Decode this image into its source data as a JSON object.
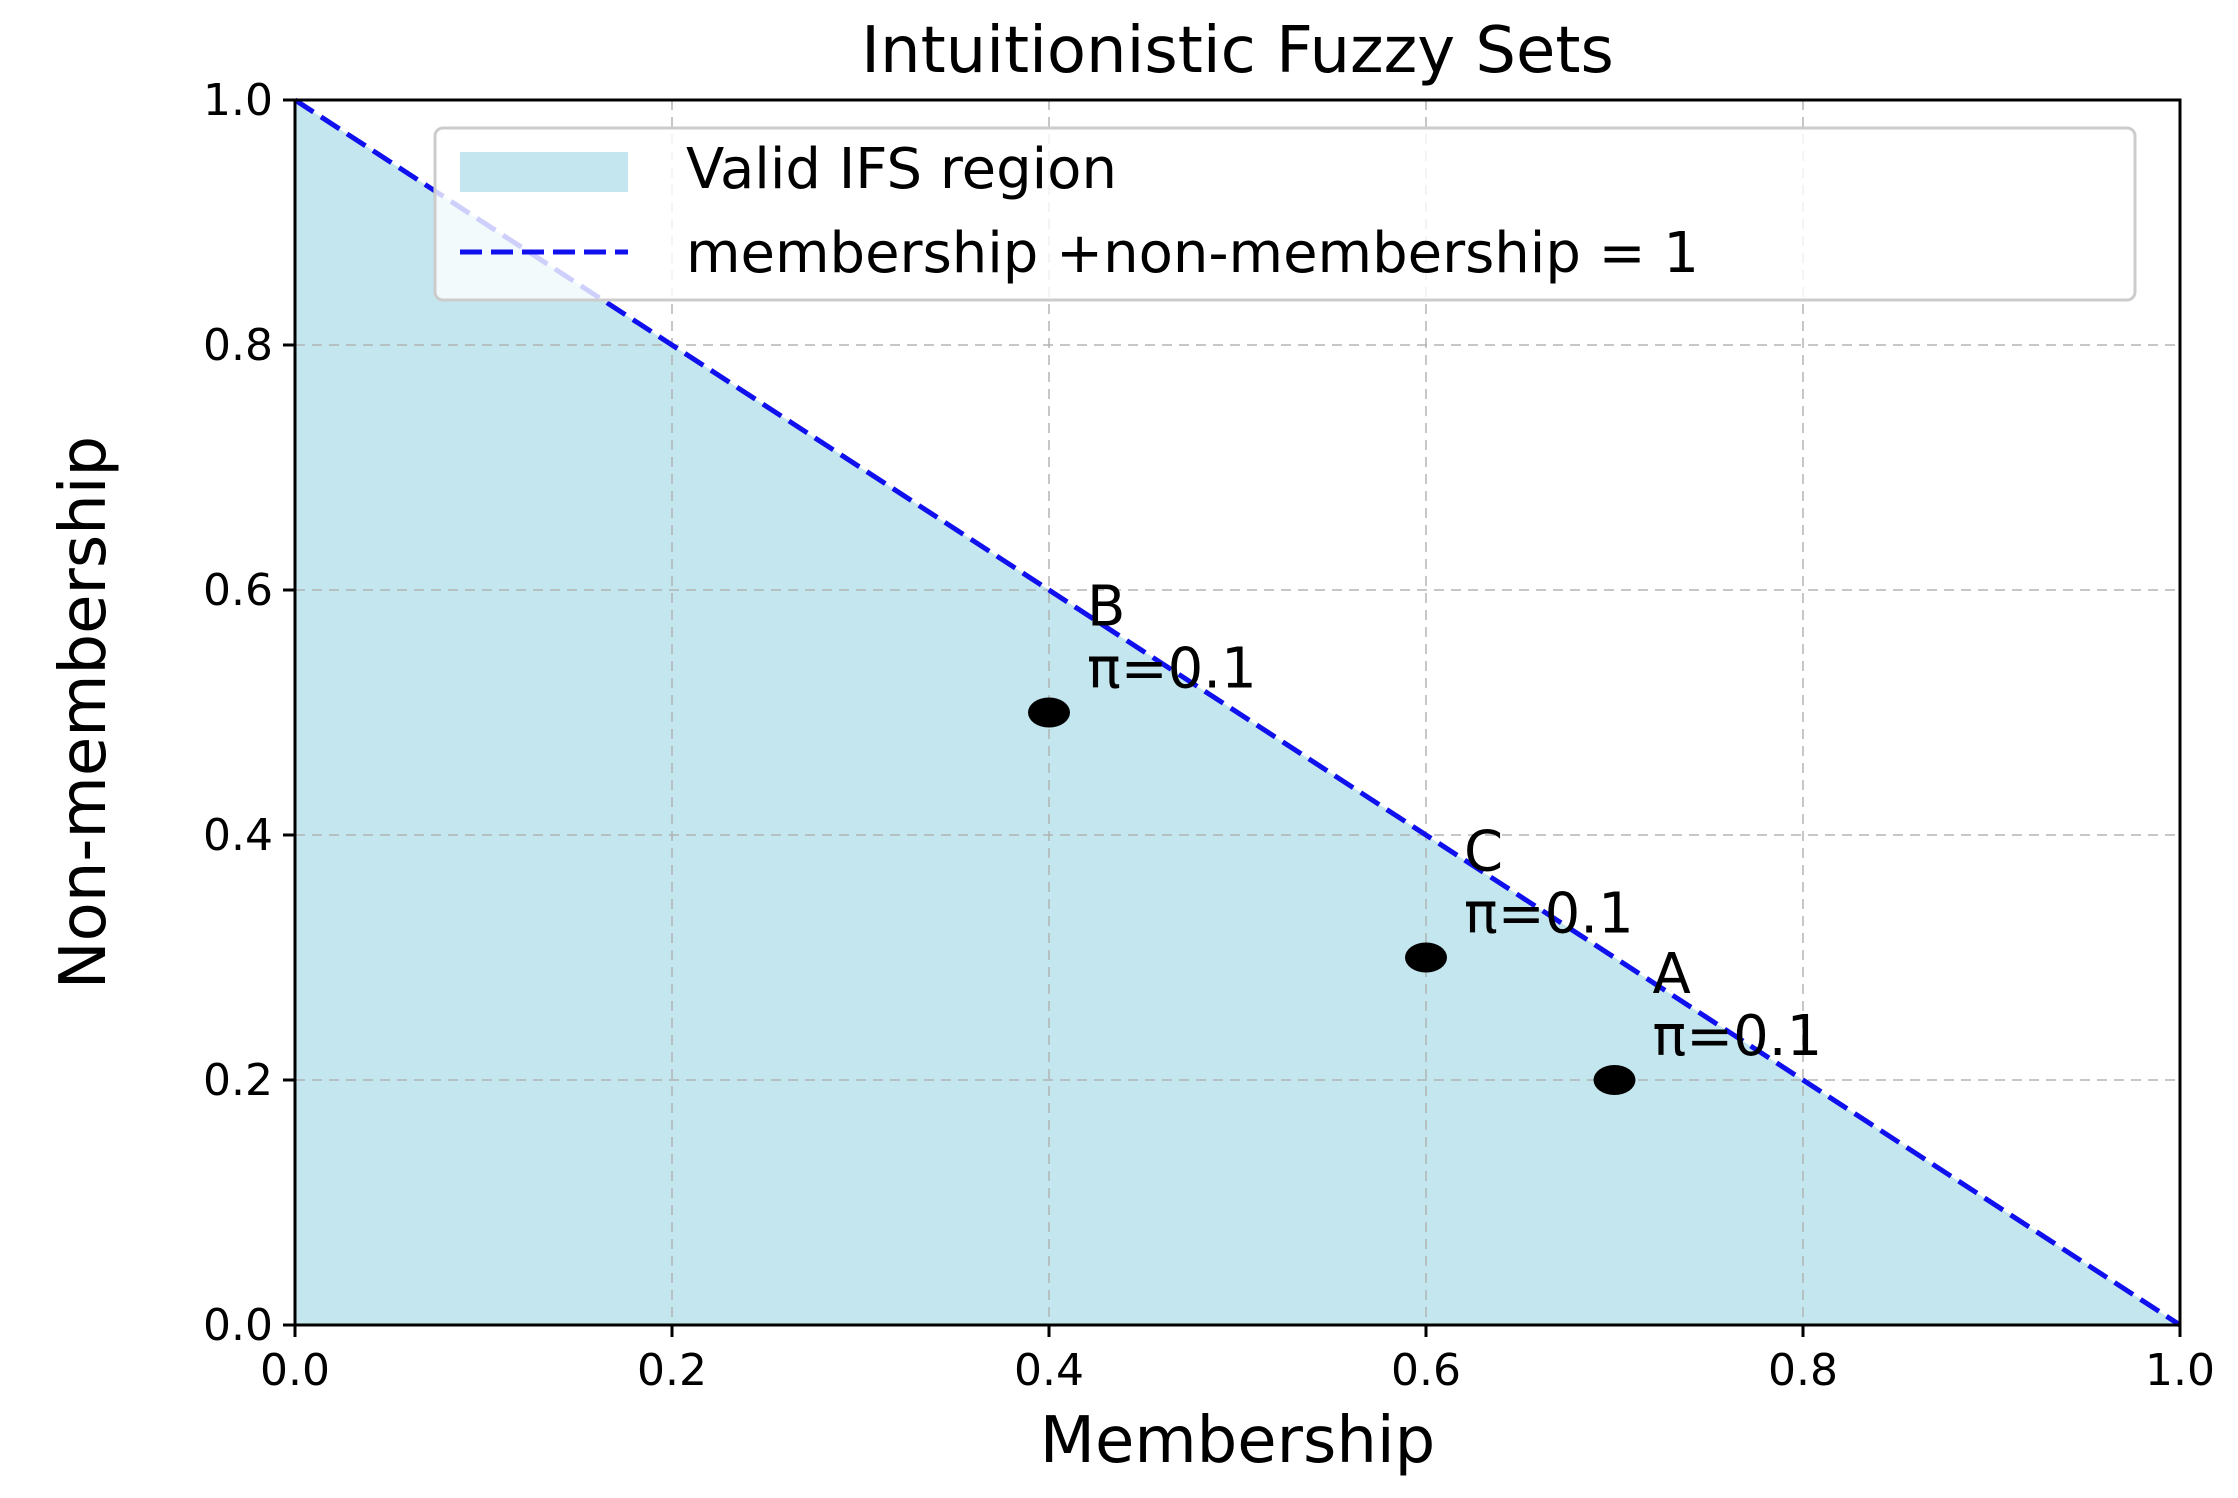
{
  "chart_data": {
    "type": "scatter",
    "title": "Intuitionistic Fuzzy Sets",
    "xlabel": "Membership",
    "ylabel": "Non-membership",
    "xlim": [
      0,
      1
    ],
    "ylim": [
      0,
      1
    ],
    "xticks": [
      "0.0",
      "0.2",
      "0.4",
      "0.6",
      "0.8",
      "1.0"
    ],
    "yticks": [
      "0.0",
      "0.2",
      "0.4",
      "0.6",
      "0.8",
      "1.0"
    ],
    "grid": true,
    "legend_position": "top-right",
    "region": {
      "name": "Valid IFS region",
      "color": "#c4e6ef",
      "vertices": [
        [
          0,
          0
        ],
        [
          0,
          1
        ],
        [
          1,
          0
        ]
      ]
    },
    "line": {
      "name": "membership +non-membership = 1",
      "color": "#1010ee",
      "style": "dashed",
      "x": [
        0,
        1
      ],
      "y": [
        1,
        0
      ]
    },
    "points": [
      {
        "name": "A",
        "x": 0.7,
        "y": 0.2,
        "label_line1": "A",
        "label_line2": "π=0.1"
      },
      {
        "name": "B",
        "x": 0.4,
        "y": 0.5,
        "label_line1": "B",
        "label_line2": "π=0.1"
      },
      {
        "name": "C",
        "x": 0.6,
        "y": 0.3,
        "label_line1": "C",
        "label_line2": "π=0.1"
      }
    ],
    "point_color": "#000000"
  }
}
